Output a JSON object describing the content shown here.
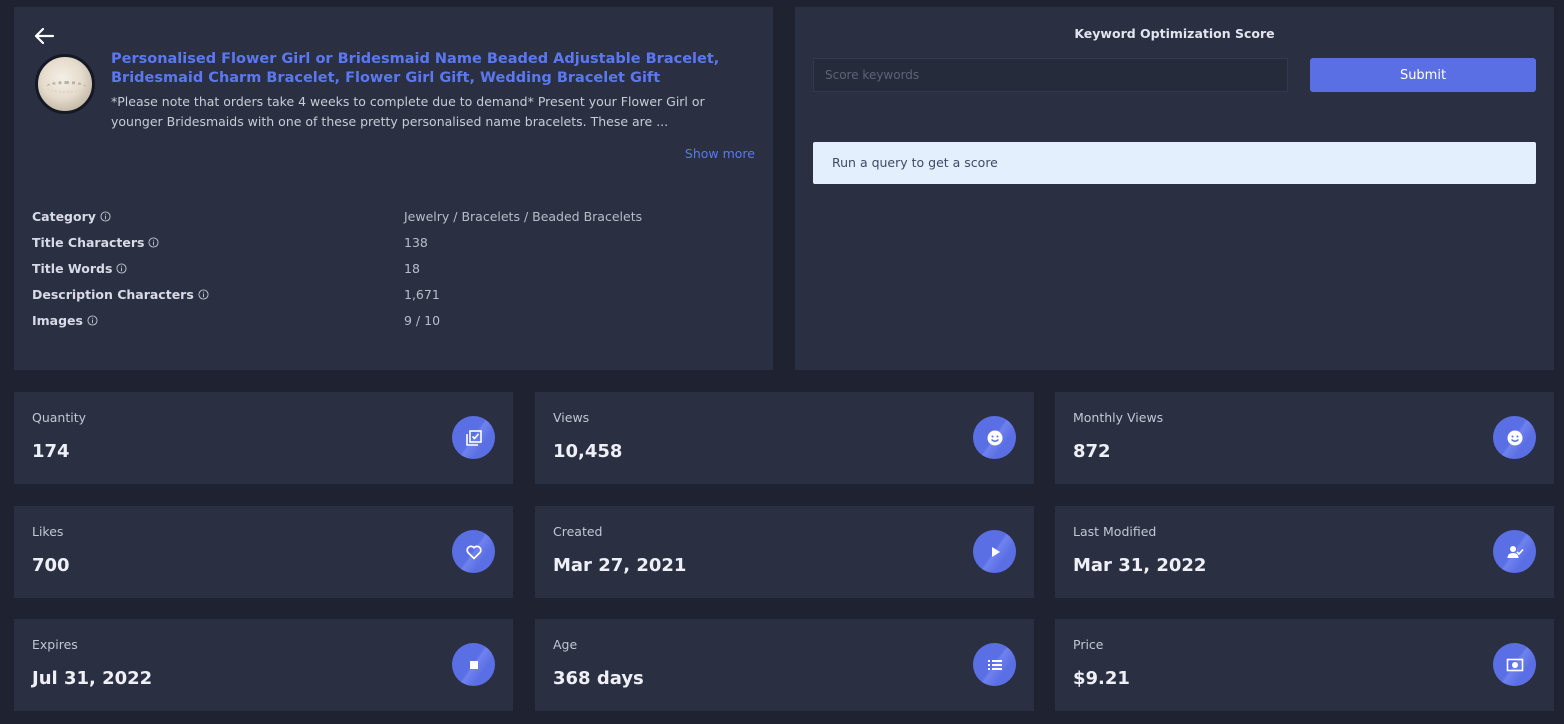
{
  "product": {
    "title": "Personalised Flower Girl or Bridesmaid Name Beaded Adjustable Bracelet, Bridesmaid Charm Bracelet, Flower Girl Gift, Wedding Bracelet Gift",
    "description": "*Please note that orders take 4 weeks to complete due to demand* Present your Flower Girl or younger Bridesmaids with one of these pretty personalised name bracelets. These are ...",
    "show_more": "Show more",
    "attributes": [
      {
        "label": "Category",
        "value": "Jewelry / Bracelets / Beaded Bracelets"
      },
      {
        "label": "Title Characters",
        "value": "138"
      },
      {
        "label": "Title Words",
        "value": "18"
      },
      {
        "label": "Description Characters",
        "value": "1,671"
      },
      {
        "label": "Images",
        "value": "9 / 10"
      }
    ]
  },
  "keyword": {
    "title": "Keyword Optimization Score",
    "placeholder": "Score keywords",
    "submit_label": "Submit",
    "result_text": "Run a query to get a score"
  },
  "stats": [
    {
      "label": "Quantity",
      "value": "174",
      "icon": "checklist-icon"
    },
    {
      "label": "Views",
      "value": "10,458",
      "icon": "smile-icon"
    },
    {
      "label": "Monthly Views",
      "value": "872",
      "icon": "smile-icon"
    },
    {
      "label": "Likes",
      "value": "700",
      "icon": "heart-icon"
    },
    {
      "label": "Created",
      "value": "Mar 27, 2021",
      "icon": "play-icon"
    },
    {
      "label": "Last Modified",
      "value": "Mar 31, 2022",
      "icon": "user-check-icon"
    },
    {
      "label": "Expires",
      "value": "Jul 31, 2022",
      "icon": "stop-icon"
    },
    {
      "label": "Age",
      "value": "368 days",
      "icon": "list-icon"
    },
    {
      "label": "Price",
      "value": "$9.21",
      "icon": "money-icon"
    }
  ],
  "colors": {
    "background": "#1f2331",
    "card": "#2a2f42",
    "accent": "#5b6fe5",
    "link": "#5b78f2",
    "result_bg": "#e3effc"
  }
}
